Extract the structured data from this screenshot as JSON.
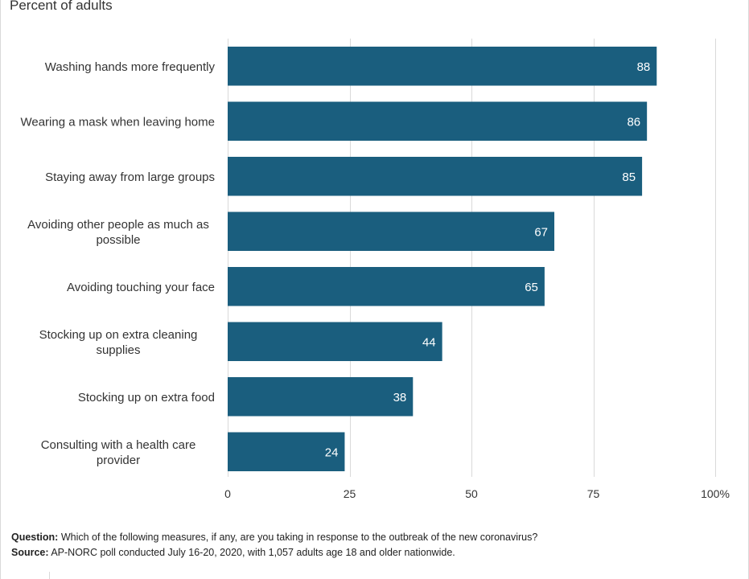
{
  "chart_data": {
    "type": "bar",
    "orientation": "horizontal",
    "subtitle": "Percent of adults",
    "categories": [
      [
        "Washing hands more frequently"
      ],
      [
        "Wearing a mask when leaving home"
      ],
      [
        "Staying away from large groups"
      ],
      [
        "Avoiding other people as much as",
        "possible"
      ],
      [
        "Avoiding touching your face"
      ],
      [
        "Stocking up on extra cleaning",
        "supplies"
      ],
      [
        "Stocking up on extra food"
      ],
      [
        "Consulting with a health care",
        "provider"
      ]
    ],
    "values": [
      88,
      86,
      85,
      67,
      65,
      44,
      38,
      24
    ],
    "xlim": [
      0,
      100
    ],
    "ticks": [
      0,
      25,
      50,
      75,
      100
    ],
    "tick_labels": [
      "0",
      "25",
      "50",
      "75",
      "100%"
    ],
    "grid": true,
    "bar_color": "#1a5e7e",
    "data_labels": true
  },
  "footer": {
    "question_label": "Question:",
    "question_text": "Which of the following measures, if any, are you taking in response to the outbreak of the new coronavirus?",
    "source_label": "Source:",
    "source_text": "AP-NORC poll conducted July 16-20, 2020, with 1,057 adults age 18 and older nationwide."
  }
}
